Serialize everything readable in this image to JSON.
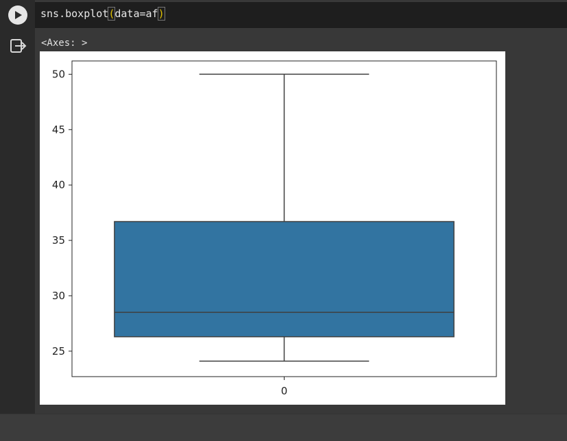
{
  "cell": {
    "code": "sns.boxplot(data=af)",
    "output_text": "<Axes: >"
  },
  "icons": {
    "run": "play-circle-icon",
    "output": "output-redirect-icon"
  },
  "colors": {
    "box_fill": "#3274a1",
    "line": "#3f3f3f"
  },
  "chart_data": {
    "type": "box",
    "title": "",
    "xlabel": "",
    "ylabel": "",
    "categories": [
      "0"
    ],
    "ylim": [
      22.7,
      51.2
    ],
    "y_ticks": [
      25,
      30,
      35,
      40,
      45,
      50
    ],
    "boxes": [
      {
        "category": "0",
        "whisker_low": 24.1,
        "q1": 26.3,
        "median": 28.5,
        "q3": 36.7,
        "whisker_high": 50.0
      }
    ]
  }
}
